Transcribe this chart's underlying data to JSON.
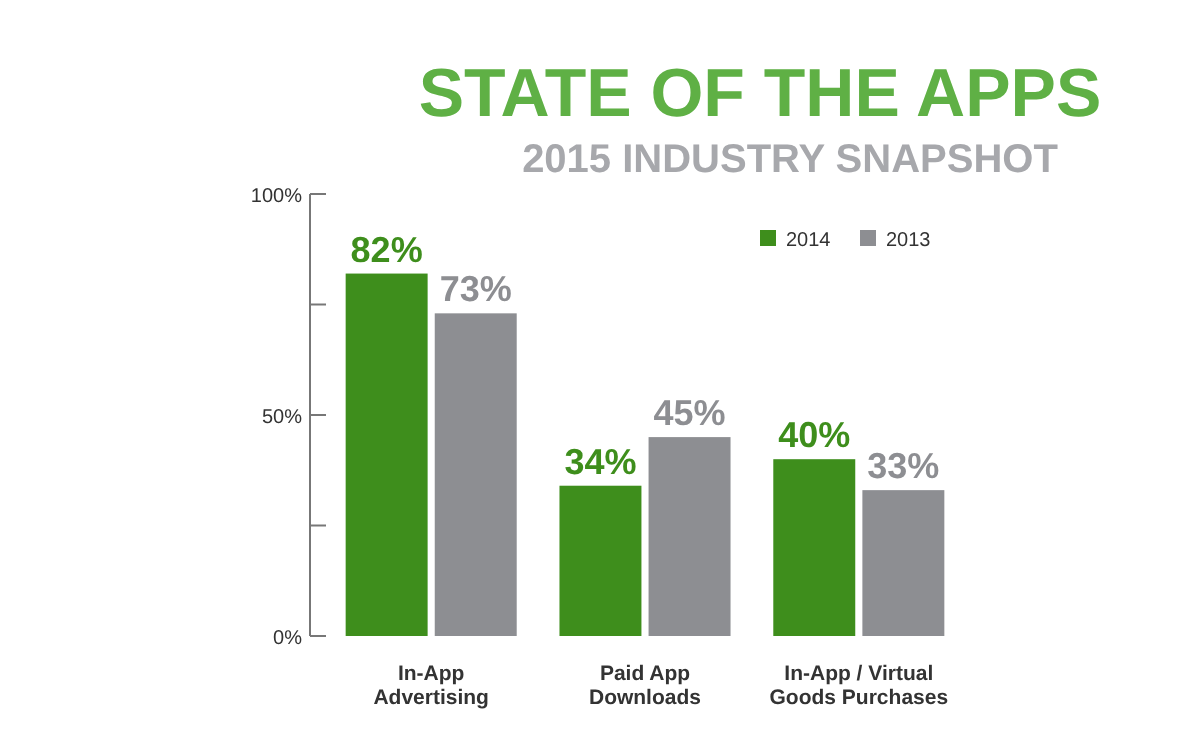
{
  "chart_data": {
    "type": "bar",
    "title": "STATE OF THE APPS",
    "subtitle": "2015 INDUSTRY SNAPSHOT",
    "categories": [
      "In-App Advertising",
      "Paid App Downloads",
      "In-App / Virtual Goods Purchases"
    ],
    "series": [
      {
        "name": "2014",
        "color": "#3e8e1c",
        "values": [
          82,
          34,
          40
        ],
        "value_labels": [
          "82%",
          "34%",
          "40%"
        ]
      },
      {
        "name": "2013",
        "color": "#8d8e92",
        "values": [
          73,
          45,
          33
        ],
        "value_labels": [
          "73%",
          "45%",
          "33%"
        ]
      }
    ],
    "ylim": [
      0,
      100
    ],
    "yticks": [
      {
        "value": 0,
        "label": "0%"
      },
      {
        "value": 25,
        "label": null
      },
      {
        "value": 50,
        "label": "50%"
      },
      {
        "value": 75,
        "label": null
      },
      {
        "value": 100,
        "label": "100%"
      }
    ],
    "legend": "top right",
    "grid": false
  }
}
